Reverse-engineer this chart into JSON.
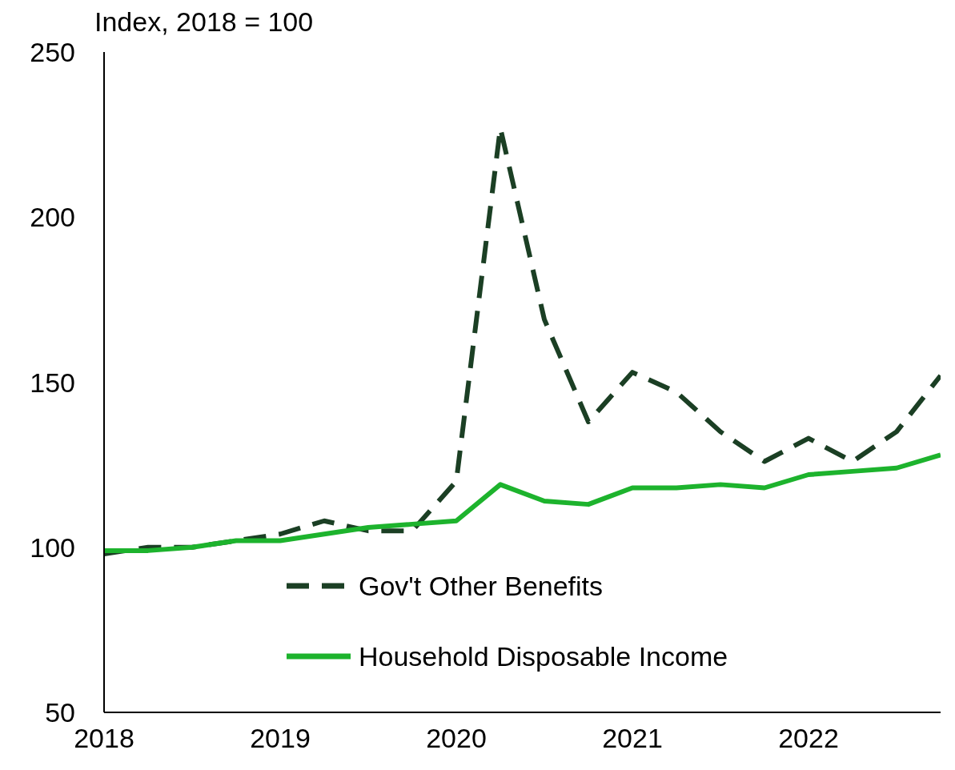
{
  "chart_data": {
    "type": "line",
    "ylabel": "Index, 2018 = 100",
    "x": [
      2018,
      2018.25,
      2018.5,
      2018.75,
      2019,
      2019.25,
      2019.5,
      2019.75,
      2020,
      2020.25,
      2020.5,
      2020.75,
      2021,
      2021.25,
      2021.5,
      2021.75,
      2022,
      2022.25,
      2022.5,
      2022.75
    ],
    "series": [
      {
        "name": "Gov't Other Benefits",
        "color": "#1b3f24",
        "line_style": "dashed",
        "values": [
          98,
          100,
          100,
          102,
          104,
          108,
          105,
          105,
          120,
          227,
          169,
          138,
          153,
          147,
          135,
          126,
          133,
          126,
          135,
          152
        ]
      },
      {
        "name": "Household Disposable Income",
        "color": "#1db32d",
        "line_style": "solid",
        "values": [
          99,
          99,
          100,
          102,
          102,
          104,
          106,
          107,
          108,
          119,
          114,
          113,
          118,
          118,
          119,
          118,
          122,
          123,
          124,
          128
        ]
      }
    ],
    "xlim": [
      2018,
      2022.75
    ],
    "xticks": [
      2018,
      2019,
      2020,
      2021,
      2022
    ],
    "ylim": [
      50,
      250
    ],
    "yticks": [
      50,
      100,
      150,
      200,
      250
    ],
    "grid": false,
    "legend": "bottom",
    "marker": "none"
  }
}
